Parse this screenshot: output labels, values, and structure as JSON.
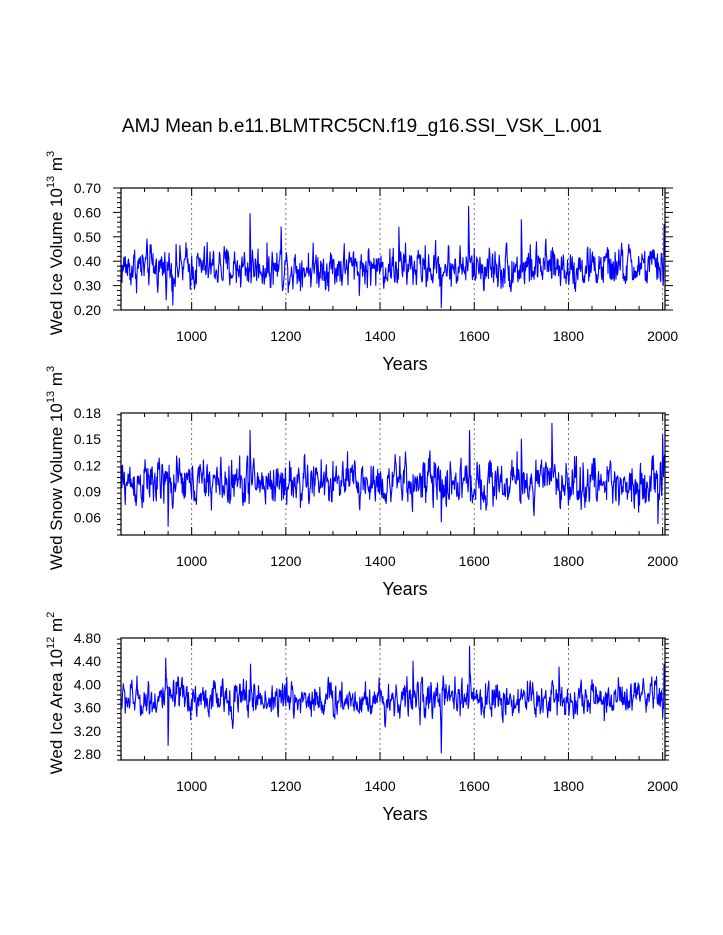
{
  "title": "AMJ Mean b.e11.BLMTRC5CN.f19_g16.SSI_VSK_L.001",
  "chart_data": [
    {
      "type": "line",
      "xlabel": "Years",
      "ylabel_parts": [
        "Wed Ice Volume 10",
        "13",
        " m",
        "3"
      ],
      "xlim": [
        850,
        2005
      ],
      "ylim": [
        0.2,
        0.7
      ],
      "xticks": [
        1000,
        1200,
        1400,
        1600,
        1800,
        2000
      ],
      "xtick_labels": [
        "1000",
        "1200",
        "1400",
        "1600",
        "1800",
        "2000"
      ],
      "yticks": [
        0.2,
        0.3,
        0.4,
        0.5,
        0.6,
        0.7
      ],
      "ytick_labels": [
        "0.20",
        "0.30",
        "0.40",
        "0.50",
        "0.60",
        "0.70"
      ],
      "grid": "vertical dashed at major x ticks",
      "color": "#0000ff",
      "series": [
        {
          "x_start": 850,
          "x_end": 2005,
          "mean": 0.375,
          "amplitude": 0.055,
          "min": 0.21,
          "max": 0.625,
          "spikes": [
            [
              1124,
              0.595
            ],
            [
              1588,
              0.625
            ],
            [
              1530,
              0.21
            ],
            [
              960,
              0.22
            ],
            [
              2003,
              0.55
            ],
            [
              1190,
              0.54
            ],
            [
              1700,
              0.57
            ],
            [
              1440,
              0.54
            ]
          ]
        }
      ]
    },
    {
      "type": "line",
      "xlabel": "Years",
      "ylabel_parts": [
        "Wed Snow Volume 10",
        "13",
        " m",
        "3"
      ],
      "xlim": [
        850,
        2005
      ],
      "ylim": [
        0.04,
        0.18
      ],
      "xticks": [
        1000,
        1200,
        1400,
        1600,
        1800,
        2000
      ],
      "xtick_labels": [
        "1000",
        "1200",
        "1400",
        "1600",
        "1800",
        "2000"
      ],
      "yticks": [
        0.06,
        0.09,
        0.12,
        0.15,
        0.18
      ],
      "ytick_labels": [
        "0.06",
        "0.09",
        "0.12",
        "0.15",
        "0.18"
      ],
      "grid": "vertical dashed at major x ticks",
      "color": "#0000ff",
      "series": [
        {
          "x_start": 850,
          "x_end": 2005,
          "mean": 0.1,
          "amplitude": 0.017,
          "min": 0.05,
          "max": 0.168,
          "spikes": [
            [
              1124,
              0.16
            ],
            [
              1590,
              0.16
            ],
            [
              1765,
              0.168
            ],
            [
              1530,
              0.055
            ],
            [
              950,
              0.05
            ],
            [
              1990,
              0.053
            ],
            [
              2000,
              0.155
            ],
            [
              1700,
              0.15
            ]
          ]
        }
      ]
    },
    {
      "type": "line",
      "xlabel": "Years",
      "ylabel_parts": [
        "Wed Ice Area 10",
        "12",
        " m",
        "2"
      ],
      "xlim": [
        850,
        2005
      ],
      "ylim": [
        2.7,
        4.8
      ],
      "xticks": [
        1000,
        1200,
        1400,
        1600,
        1800,
        2000
      ],
      "xtick_labels": [
        "1000",
        "1200",
        "1400",
        "1600",
        "1800",
        "2000"
      ],
      "yticks": [
        2.8,
        3.2,
        3.6,
        4.0,
        4.4,
        4.8
      ],
      "ytick_labels": [
        "2.80",
        "3.20",
        "3.60",
        "4.00",
        "4.40",
        "4.80"
      ],
      "grid": "vertical dashed at major x ticks",
      "color": "#0000ff",
      "series": [
        {
          "x_start": 850,
          "x_end": 2005,
          "mean": 3.75,
          "amplitude": 0.2,
          "min": 2.82,
          "max": 4.66,
          "spikes": [
            [
              1590,
              4.66
            ],
            [
              1530,
              2.82
            ],
            [
              945,
              4.45
            ],
            [
              950,
              2.95
            ],
            [
              1470,
              4.4
            ],
            [
              2003,
              4.35
            ],
            [
              1125,
              4.35
            ],
            [
              1780,
              4.3
            ]
          ]
        }
      ]
    }
  ]
}
